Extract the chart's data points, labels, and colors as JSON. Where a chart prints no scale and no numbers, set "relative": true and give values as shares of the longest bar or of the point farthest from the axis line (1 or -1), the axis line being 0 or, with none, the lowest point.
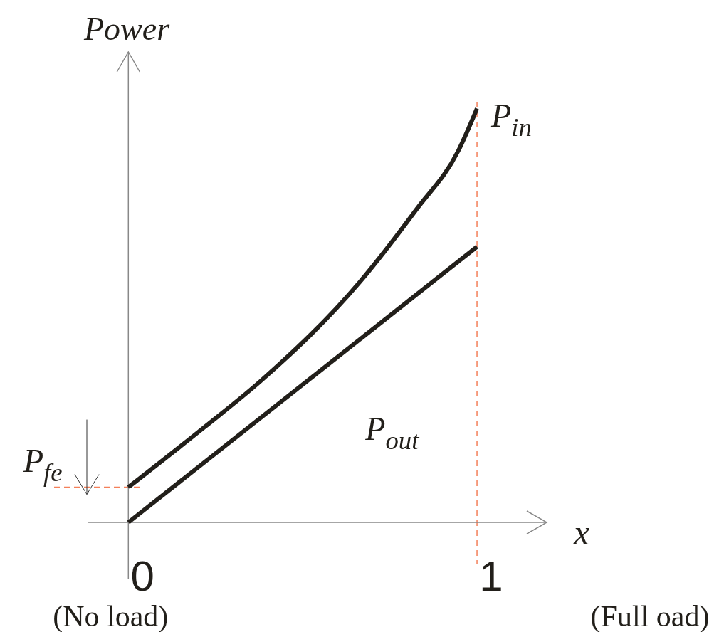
{
  "chart_data": {
    "type": "line",
    "xlabel": "x",
    "ylabel": "Power",
    "relative": true,
    "xlim": [
      -0.117,
      1.2
    ],
    "xticks": [
      0,
      1
    ],
    "tick_labels": "x",
    "line_style": "solid",
    "marker": "none",
    "grid": false,
    "legend": false,
    "series": [
      {
        "name": "P$_{in}$",
        "color": "#221f1a",
        "x": [
          0,
          0.218,
          0.38,
          0.664,
          0.826,
          0.947,
          1
        ],
        "values": [
          0.085,
          0.23,
          0.342,
          0.581,
          0.756,
          0.899,
          1
        ]
      },
      {
        "name": "P$_{out}$",
        "color": "#221f1a",
        "x": [
          0,
          1
        ],
        "values": [
          0,
          0.666
        ]
      }
    ],
    "ref_lines": [
      {
        "axis": "x",
        "value": 1,
        "color": "#f4805a",
        "line_style": "dashed"
      },
      {
        "axis": "y",
        "value": 0.085,
        "label": "P$_{fe}$",
        "color": "#f4805a",
        "line_style": "dashed"
      }
    ],
    "annotations": [
      "(No load)",
      "(Full oad)"
    ]
  }
}
